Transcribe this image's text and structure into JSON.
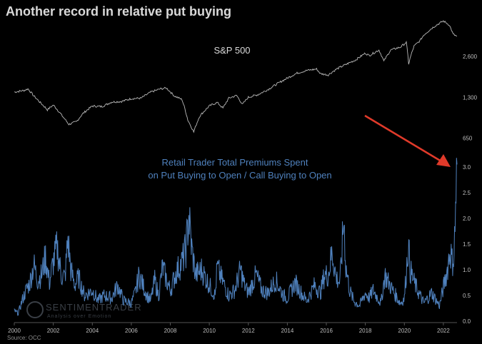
{
  "title": "Another record in relative put buying",
  "source": "Source: OCC",
  "watermark": {
    "brand": "SENTIMENTRADER",
    "tagline": "Analysis over Emotion"
  },
  "colors": {
    "background": "#000000",
    "sp_line": "#b8b8b8",
    "ratio_line": "#4f81bd",
    "arrow": "#e03a2a"
  },
  "chart_data": {
    "type": "line",
    "x_range": [
      2000,
      2022.7
    ],
    "x_ticks": [
      "2000",
      "2002",
      "2004",
      "2006",
      "2008",
      "2010",
      "2012",
      "2014",
      "2016",
      "2018",
      "2020",
      "2022"
    ],
    "annotations": {
      "sp500_label": "S&P 500",
      "ratio_label_line1": "Retail Trader Total Premiums Spent",
      "ratio_label_line2": "on Put Buying to Open / Call Buying to Open"
    },
    "panels": [
      {
        "name": "S&P 500",
        "scale": "log",
        "y_ticks": [
          "2,600",
          "1,300",
          "650"
        ],
        "y_tick_values": [
          2600,
          1300,
          650
        ],
        "ylim": [
          600,
          5200
        ],
        "x": [
          2000.0,
          2000.5,
          2000.7,
          2001.0,
          2001.3,
          2001.7,
          2002.0,
          2002.5,
          2002.8,
          2003.2,
          2003.5,
          2004.0,
          2004.5,
          2005.0,
          2005.5,
          2006.0,
          2006.5,
          2007.0,
          2007.5,
          2007.8,
          2008.2,
          2008.6,
          2008.9,
          2009.2,
          2009.5,
          2010.0,
          2010.4,
          2010.7,
          2011.0,
          2011.4,
          2011.7,
          2012.0,
          2012.5,
          2013.0,
          2013.5,
          2014.0,
          2014.5,
          2015.0,
          2015.5,
          2015.7,
          2016.1,
          2016.5,
          2017.0,
          2017.5,
          2018.0,
          2018.2,
          2018.7,
          2018.95,
          2019.3,
          2019.8,
          2020.1,
          2020.22,
          2020.5,
          2020.8,
          2021.0,
          2021.5,
          2022.0,
          2022.3,
          2022.5,
          2022.7
        ],
        "values": [
          1420,
          1460,
          1500,
          1330,
          1200,
          1050,
          1140,
          930,
          820,
          860,
          980,
          1120,
          1110,
          1200,
          1210,
          1270,
          1280,
          1420,
          1500,
          1520,
          1330,
          1250,
          880,
          720,
          940,
          1120,
          1190,
          1080,
          1280,
          1340,
          1150,
          1300,
          1360,
          1480,
          1640,
          1800,
          1960,
          2050,
          2100,
          1940,
          1900,
          2090,
          2270,
          2450,
          2750,
          2640,
          2900,
          2400,
          2900,
          3050,
          3300,
          2300,
          3100,
          3400,
          3750,
          4300,
          4750,
          4450,
          3800,
          3650
        ]
      },
      {
        "name": "Retail Trader Total Premiums Spent on Put Buying to Open / Call Buying to Open",
        "y_ticks": [
          "3.0",
          "2.5",
          "2.0",
          "1.5",
          "1.0",
          "0.5",
          "0.0"
        ],
        "y_tick_values": [
          3.0,
          2.5,
          2.0,
          1.5,
          1.0,
          0.5,
          0.0
        ],
        "ylim": [
          0,
          3.0
        ],
        "x": [
          2000.0,
          2000.2,
          2000.4,
          2000.6,
          2000.8,
          2001.0,
          2001.2,
          2001.4,
          2001.6,
          2001.8,
          2002.0,
          2002.2,
          2002.4,
          2002.6,
          2002.75,
          2002.9,
          2003.1,
          2003.3,
          2003.6,
          2004.0,
          2004.3,
          2004.6,
          2005.0,
          2005.3,
          2005.6,
          2006.0,
          2006.2,
          2006.4,
          2006.6,
          2006.8,
          2007.0,
          2007.2,
          2007.4,
          2007.6,
          2007.8,
          2008.0,
          2008.3,
          2008.6,
          2008.8,
          2008.95,
          2009.1,
          2009.3,
          2009.6,
          2010.0,
          2010.3,
          2010.4,
          2010.6,
          2011.0,
          2011.3,
          2011.6,
          2011.8,
          2012.0,
          2012.4,
          2012.7,
          2013.0,
          2013.4,
          2013.8,
          2014.0,
          2014.4,
          2014.8,
          2015.0,
          2015.4,
          2015.7,
          2015.9,
          2016.1,
          2016.3,
          2016.5,
          2016.7,
          2016.9,
          2017.0,
          2017.2,
          2017.4,
          2017.7,
          2018.0,
          2018.2,
          2018.4,
          2018.8,
          2019.0,
          2019.4,
          2019.8,
          2020.0,
          2020.2,
          2020.3,
          2020.5,
          2020.8,
          2021.0,
          2021.4,
          2021.8,
          2022.0,
          2022.2,
          2022.35,
          2022.45,
          2022.55,
          2022.65,
          2022.7
        ],
        "values": [
          0.2,
          0.15,
          0.4,
          0.6,
          0.75,
          1.1,
          0.8,
          0.9,
          1.25,
          0.75,
          1.15,
          1.45,
          0.9,
          0.85,
          1.6,
          1.0,
          0.7,
          0.85,
          0.5,
          0.6,
          0.4,
          0.5,
          0.45,
          0.7,
          0.4,
          0.35,
          0.55,
          0.9,
          0.7,
          0.5,
          0.4,
          0.8,
          0.5,
          1.05,
          0.8,
          0.6,
          0.95,
          1.15,
          1.4,
          2.05,
          1.4,
          0.9,
          1.0,
          0.7,
          0.5,
          1.05,
          0.85,
          0.5,
          0.6,
          1.0,
          0.7,
          0.55,
          0.9,
          0.6,
          0.55,
          0.8,
          0.5,
          0.45,
          0.75,
          0.5,
          0.4,
          0.7,
          0.55,
          0.9,
          0.9,
          1.35,
          0.85,
          0.75,
          2.0,
          1.05,
          0.6,
          0.4,
          0.3,
          0.55,
          0.45,
          0.6,
          0.35,
          0.9,
          0.6,
          0.35,
          0.45,
          1.5,
          1.0,
          0.75,
          0.5,
          0.35,
          0.55,
          0.3,
          0.65,
          1.0,
          1.4,
          1.15,
          1.3,
          2.5,
          3.05
        ]
      }
    ]
  }
}
